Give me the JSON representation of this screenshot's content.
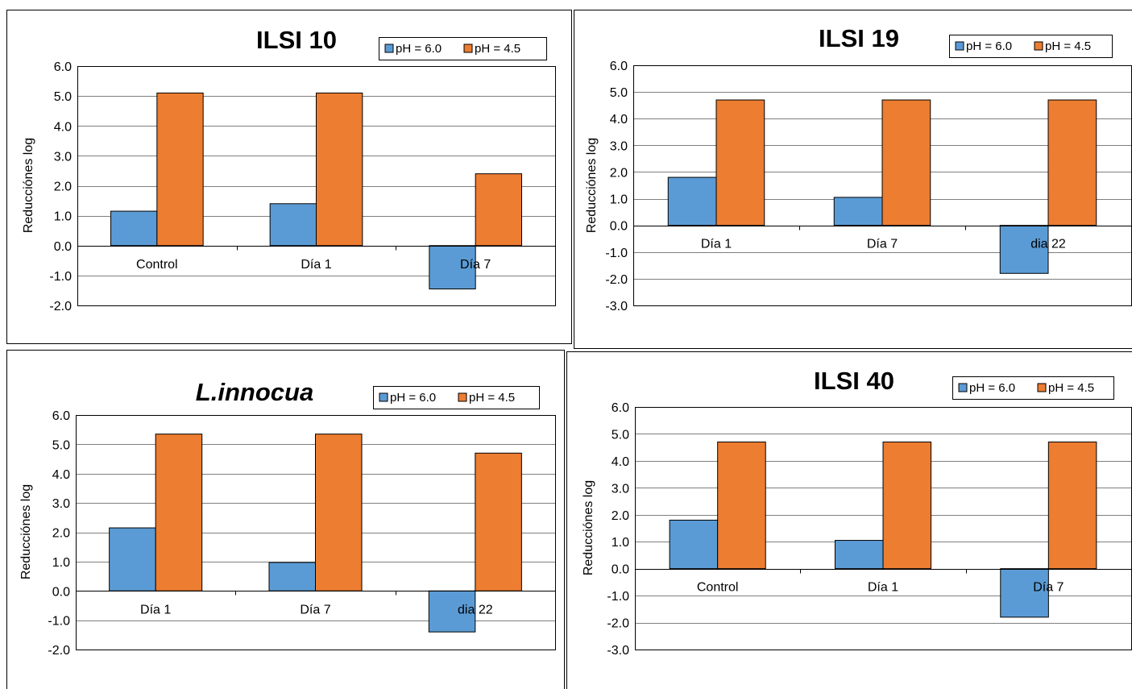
{
  "colors": {
    "series1": "#5b9bd5",
    "series2": "#ed7d31",
    "border": "#000000",
    "grid": "#7f7f7f"
  },
  "chart_data": [
    {
      "type": "bar",
      "title": "ILSI 10",
      "title_italic": false,
      "ylabel": "Reducciónes log",
      "categories": [
        "Control",
        "Día 1",
        "Día 7"
      ],
      "series": [
        {
          "name": "pH = 6.0",
          "values": [
            1.15,
            1.4,
            -1.45
          ]
        },
        {
          "name": "pH = 4.5",
          "values": [
            5.1,
            5.1,
            2.4
          ]
        }
      ],
      "ylim": [
        -2.0,
        6.0
      ],
      "yticks": [
        "-2.0",
        "-1.0",
        "0.0",
        "1.0",
        "2.0",
        "3.0",
        "4.0",
        "5.0",
        "6.0"
      ],
      "grid": true,
      "legend": "top-right"
    },
    {
      "type": "bar",
      "title": "ILSI 19",
      "title_italic": false,
      "ylabel": "Reducciónes log",
      "categories": [
        "Día 1",
        "Día 7",
        "dia 22"
      ],
      "series": [
        {
          "name": "pH = 6.0",
          "values": [
            1.8,
            1.05,
            -1.8
          ]
        },
        {
          "name": "pH = 4.5",
          "values": [
            4.7,
            4.7,
            4.7
          ]
        }
      ],
      "ylim": [
        -3.0,
        6.0
      ],
      "yticks": [
        "-3.0",
        "-2.0",
        "-1.0",
        "0.0",
        "1.0",
        "2.0",
        "3.0",
        "4.0",
        "5.0",
        "6.0"
      ],
      "grid": true,
      "legend": "top-right"
    },
    {
      "type": "bar",
      "title": "L.innocua",
      "title_italic": true,
      "ylabel": "Reducciónes log",
      "categories": [
        "Día 1",
        "Día 7",
        "dia 22"
      ],
      "series": [
        {
          "name": "pH = 6.0",
          "values": [
            2.15,
            0.97,
            -1.4
          ]
        },
        {
          "name": "pH = 4.5",
          "values": [
            5.35,
            5.35,
            4.7
          ]
        }
      ],
      "ylim": [
        -2.0,
        6.0
      ],
      "yticks": [
        "-2.0",
        "-1.0",
        "0.0",
        "1.0",
        "2.0",
        "3.0",
        "4.0",
        "5.0",
        "6.0"
      ],
      "grid": true,
      "legend": "top-right"
    },
    {
      "type": "bar",
      "title": "ILSI 40",
      "title_italic": false,
      "ylabel": "Reducciónes log",
      "categories": [
        "Control",
        "Día 1",
        "Día 7"
      ],
      "series": [
        {
          "name": "pH = 6.0",
          "values": [
            1.8,
            1.05,
            -1.8
          ]
        },
        {
          "name": "pH = 4.5",
          "values": [
            4.7,
            4.7,
            4.7
          ]
        }
      ],
      "ylim": [
        -3.0,
        6.0
      ],
      "yticks": [
        "-3.0",
        "-2.0",
        "-1.0",
        "0.0",
        "1.0",
        "2.0",
        "3.0",
        "4.0",
        "5.0",
        "6.0"
      ],
      "grid": true,
      "legend": "top-right"
    }
  ]
}
